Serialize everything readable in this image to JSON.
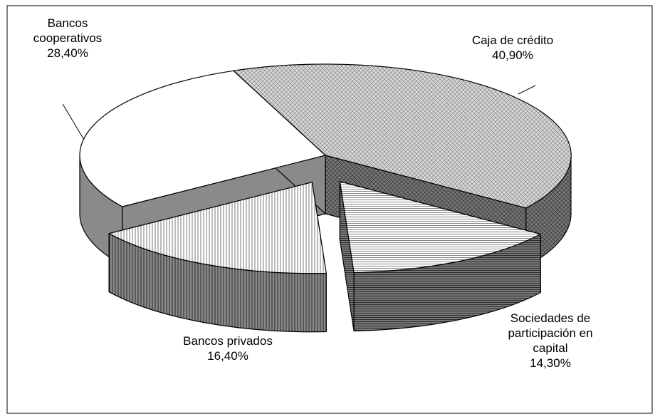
{
  "chart_data": {
    "type": "pie3d",
    "categories": [
      "Caja de crédito",
      "Sociedades de participación en capital",
      "Bancos privados",
      "Bancos cooperativos"
    ],
    "values": [
      40.9,
      14.3,
      16.4,
      28.4
    ],
    "value_labels": [
      "40,90%",
      "14,30%",
      "16,40%",
      "28,40%"
    ],
    "colors": [
      "#cfcfcf",
      "#ffffff",
      "#ffffff",
      "#ffffff"
    ],
    "exploded": [
      false,
      true,
      true,
      false
    ]
  }
}
